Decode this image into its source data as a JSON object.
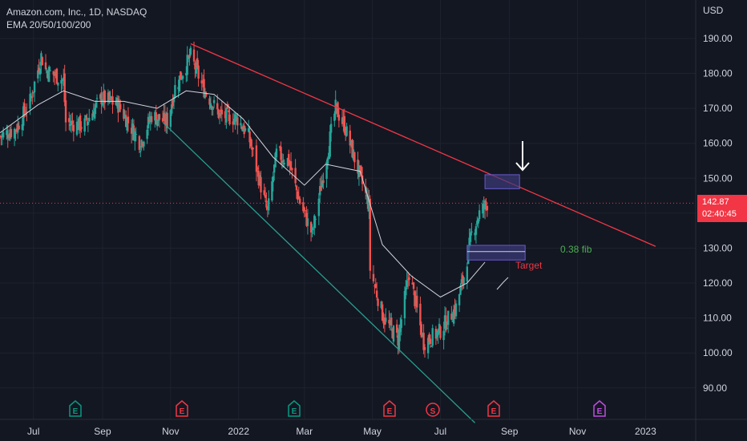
{
  "header": {
    "symbol_line": "Amazon.com, Inc., 1D, NASDAQ",
    "indicator": "EMA 20/50/100/200"
  },
  "price_axis": {
    "currency": "USD",
    "current_price": "142.87",
    "countdown": "02:40:45"
  },
  "colors": {
    "background": "#131722",
    "grid": "#1e222d",
    "candle_up": "#26a69a",
    "candle_down": "#ef5350",
    "ema": "#d1d4dc",
    "resistance": "#f23645",
    "support": "#2a9d8f",
    "price_line": "#f23645",
    "zone": "#3c3a7a",
    "fib_text": "#4caf50",
    "target_text": "#f23645",
    "earnings_green": "#089981",
    "earnings_red": "#f23645",
    "earnings_purple": "#c04de0"
  },
  "annotations": {
    "fib_label": "0.38 fib",
    "target_label": "Target",
    "arrow_icon": "down-arrow"
  },
  "events": [
    {
      "label": "E",
      "color": "green"
    },
    {
      "label": "E",
      "color": "red"
    },
    {
      "label": "E",
      "color": "green"
    },
    {
      "label": "E",
      "color": "red"
    },
    {
      "label": "S",
      "color": "red-circle"
    },
    {
      "label": "E",
      "color": "red"
    },
    {
      "label": "E",
      "color": "purple"
    }
  ],
  "chart_data": {
    "type": "candlestick",
    "title": "Amazon.com, Inc., 1D, NASDAQ",
    "ylabel": "USD",
    "ylim": [
      81,
      201
    ],
    "y_ticks": [
      "90.00",
      "100.00",
      "110.00",
      "120.00",
      "130.00",
      "140.00",
      "150.00",
      "160.00",
      "170.00",
      "180.00",
      "190.00"
    ],
    "x_ticks": [
      "Jul",
      "Sep",
      "Nov",
      "2022",
      "Mar",
      "May",
      "Jul",
      "Sep",
      "Nov",
      "2023"
    ],
    "x_range": [
      "2021-06-01",
      "2023-02-15"
    ],
    "closes": [
      [
        "2021-06-01",
        162
      ],
      [
        "2021-06-15",
        164
      ],
      [
        "2021-06-28",
        172
      ],
      [
        "2021-07-08",
        185
      ],
      [
        "2021-07-12",
        181
      ],
      [
        "2021-07-28",
        178
      ],
      [
        "2021-07-30",
        166
      ],
      [
        "2021-08-15",
        165
      ],
      [
        "2021-08-31",
        173
      ],
      [
        "2021-09-15",
        171
      ],
      [
        "2021-10-05",
        160
      ],
      [
        "2021-10-15",
        168
      ],
      [
        "2021-10-29",
        166
      ],
      [
        "2021-11-05",
        176
      ],
      [
        "2021-11-19",
        185
      ],
      [
        "2021-11-30",
        176
      ],
      [
        "2021-12-15",
        168
      ],
      [
        "2021-12-31",
        167
      ],
      [
        "2022-01-10",
        162
      ],
      [
        "2022-01-27",
        140
      ],
      [
        "2022-02-04",
        157
      ],
      [
        "2022-02-15",
        155
      ],
      [
        "2022-02-24",
        144
      ],
      [
        "2022-03-08",
        134
      ],
      [
        "2022-03-29",
        170
      ],
      [
        "2022-04-06",
        165
      ],
      [
        "2022-04-28",
        142
      ],
      [
        "2022-04-29",
        124
      ],
      [
        "2022-05-11",
        110
      ],
      [
        "2022-05-24",
        104
      ],
      [
        "2022-06-03",
        123
      ],
      [
        "2022-06-16",
        103
      ],
      [
        "2022-06-30",
        106
      ],
      [
        "2022-07-15",
        113
      ],
      [
        "2022-07-22",
        122
      ],
      [
        "2022-07-29",
        134
      ],
      [
        "2022-08-05",
        140
      ],
      [
        "2022-08-12",
        142.87
      ]
    ],
    "ema": [
      [
        "2021-06-01",
        163
      ],
      [
        "2021-07-05",
        171
      ],
      [
        "2021-07-28",
        175
      ],
      [
        "2021-08-25",
        172
      ],
      [
        "2021-09-20",
        172
      ],
      [
        "2021-10-20",
        170
      ],
      [
        "2021-11-15",
        175
      ],
      [
        "2021-12-10",
        174
      ],
      [
        "2022-01-05",
        167
      ],
      [
        "2022-02-01",
        156
      ],
      [
        "2022-03-01",
        148
      ],
      [
        "2022-03-20",
        154
      ],
      [
        "2022-04-20",
        152
      ],
      [
        "2022-05-10",
        131
      ],
      [
        "2022-06-05",
        122
      ],
      [
        "2022-07-01",
        116
      ],
      [
        "2022-07-25",
        120
      ],
      [
        "2022-08-10",
        126
      ]
    ],
    "trendlines": [
      {
        "name": "resistance",
        "from": [
          "2021-11-19",
          188.5
        ],
        "to": [
          "2023-01-10",
          130.5
        ]
      },
      {
        "name": "support",
        "from": [
          "2021-10-25",
          166
        ],
        "to": [
          "2022-08-01",
          80
        ]
      }
    ],
    "zones": [
      {
        "name": "target-zone",
        "x": [
          "2022-08-10",
          "2022-09-10"
        ],
        "y": [
          147,
          151
        ]
      },
      {
        "name": "fib-zone",
        "x": [
          "2022-07-25",
          "2022-09-15"
        ],
        "y": [
          126.6,
          130.8
        ]
      }
    ],
    "current_price": 142.87
  }
}
